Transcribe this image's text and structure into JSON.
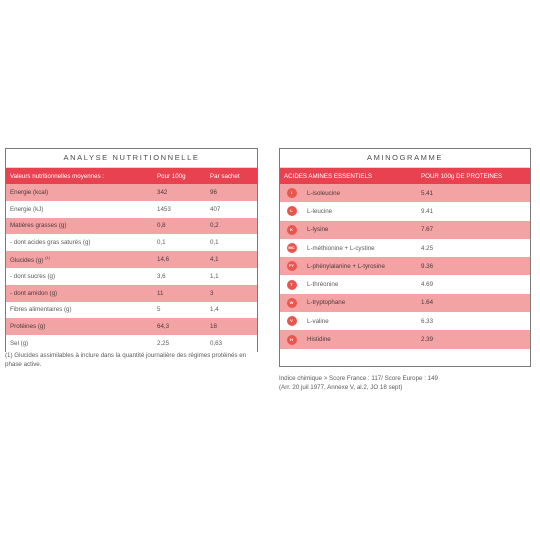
{
  "analyse": {
    "title": "ANALYSE NUTRITIONNELLE",
    "headers": [
      "Valeurs nutritionnelles moyennes :",
      "Pour 100g",
      "Par sachet"
    ],
    "rows": [
      {
        "label": "Energie (kcal)",
        "sup": "",
        "per100": "342",
        "sachet": "96"
      },
      {
        "label": "Energie  (kJ)",
        "sup": "",
        "per100": "1453",
        "sachet": "407"
      },
      {
        "label": "Matières grasses (g)",
        "sup": "",
        "per100": "0,8",
        "sachet": "0,2"
      },
      {
        "label": "- dont acides gras saturés (g)",
        "sup": "",
        "per100": "0,1",
        "sachet": "0,1"
      },
      {
        "label": "Glucides (g)",
        "sup": "(1)",
        "per100": "14,6",
        "sachet": "4,1"
      },
      {
        "label": "- dont sucres (g)",
        "sup": "",
        "per100": "3,6",
        "sachet": "1,1"
      },
      {
        "label": "- dont amidon (g)",
        "sup": "",
        "per100": "11",
        "sachet": "3"
      },
      {
        "label": "Fibres alimentaires (g)",
        "sup": "",
        "per100": "5",
        "sachet": "1,4"
      },
      {
        "label": "Protéines (g)",
        "sup": "",
        "per100": "64,3",
        "sachet": "18"
      },
      {
        "label": "Sel (g)",
        "sup": "",
        "per100": "2,25",
        "sachet": "0,63"
      }
    ],
    "note": "(1) Glucides assimilables à inclure dans la quantité journalière des régimes protéinés en phase active."
  },
  "aminogramme": {
    "title": "AMINOGRAMME",
    "headers": [
      "ACIDES AMINES ESSENTIELS",
      "POUR 100g DE PROTEINES"
    ],
    "rows": [
      {
        "icon": "I",
        "name": "L-isoleucine",
        "value": "5.41"
      },
      {
        "icon": "L",
        "name": "L-leucine",
        "value": "9.41"
      },
      {
        "icon": "K",
        "name": "L-lysine",
        "value": "7.67"
      },
      {
        "icon": "MC",
        "name": "L-méthionine + L-cystine",
        "value": "4.25"
      },
      {
        "icon": "FY",
        "name": "L-phénylalanine + L-tyrosine",
        "value": "9.36"
      },
      {
        "icon": "T",
        "name": "L-thréonine",
        "value": "4.69"
      },
      {
        "icon": "W",
        "name": "L-tryptophane",
        "value": "1.64"
      },
      {
        "icon": "V",
        "name": "L-valine",
        "value": "6.33"
      },
      {
        "icon": "H",
        "name": "Histidine",
        "value": "2.39"
      }
    ],
    "note_line1": "Indice chimique > Score France : 117/ Score Europe : 149",
    "note_line2": "(Arr. 20 juil 1977, Annexe V, al.2, JO 18 sept)"
  },
  "colors": {
    "header": "#e8414f",
    "row_pink": "#f4a3a5",
    "icon": "#e8574f"
  }
}
